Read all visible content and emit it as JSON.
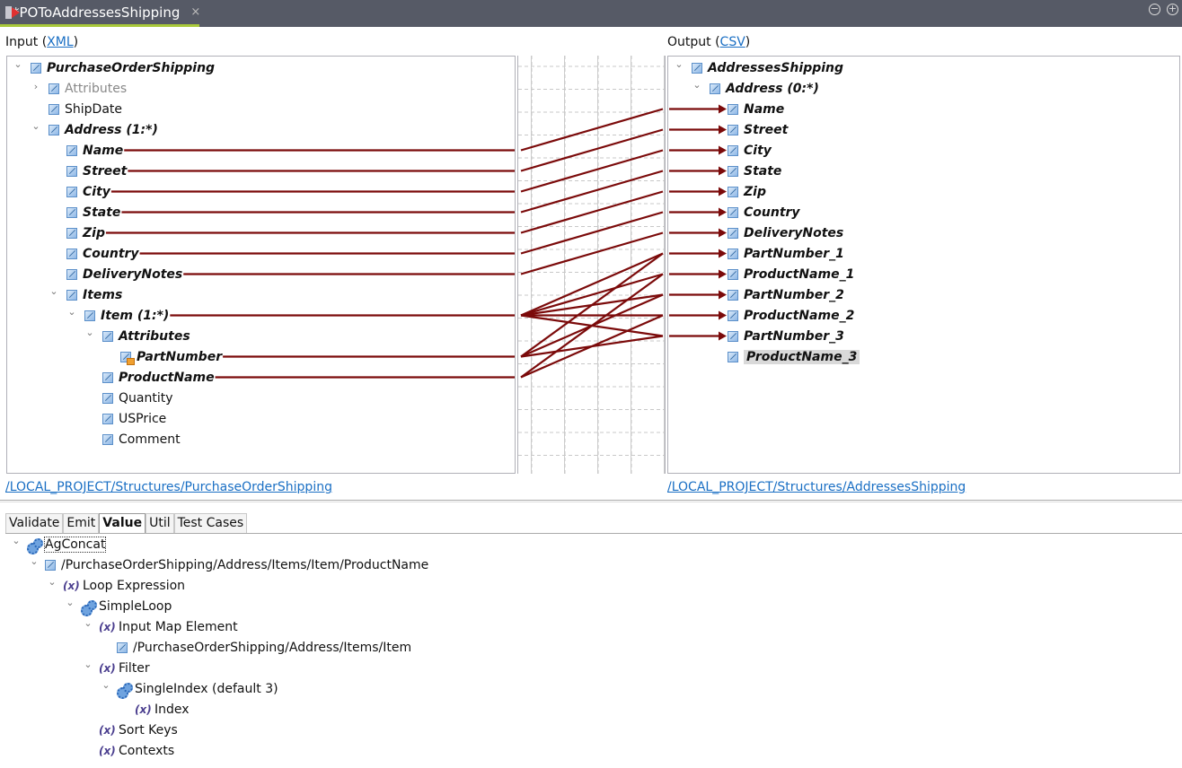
{
  "editor_tab": {
    "title": "*POToAddressesShipping",
    "close": "×"
  },
  "window_buttons": {
    "minimize": "−",
    "maximize": "+"
  },
  "input": {
    "label": "Input (",
    "type_link": "XML",
    "label_end": ")",
    "path": "/LOCAL_PROJECT/Structures/PurchaseOrderShipping"
  },
  "output": {
    "label": "Output (",
    "type_link": "CSV",
    "label_end": ")",
    "path": "/LOCAL_PROJECT/Structures/AddressesShipping"
  },
  "input_tree": [
    {
      "id": "pos",
      "label": "PurchaseOrderShipping",
      "level": 0,
      "chevron": "open",
      "bold": true
    },
    {
      "id": "attrs",
      "label": "Attributes",
      "level": 1,
      "chevron": "closed",
      "muted": true
    },
    {
      "id": "shipdate",
      "label": "ShipDate",
      "level": 1
    },
    {
      "id": "address",
      "label": "Address (1:*)",
      "level": 1,
      "chevron": "open",
      "bold": true
    },
    {
      "id": "name",
      "label": "Name",
      "level": 2,
      "bold": true
    },
    {
      "id": "street",
      "label": "Street",
      "level": 2,
      "bold": true
    },
    {
      "id": "city",
      "label": "City",
      "level": 2,
      "bold": true
    },
    {
      "id": "state",
      "label": "State",
      "level": 2,
      "bold": true
    },
    {
      "id": "zip",
      "label": "Zip",
      "level": 2,
      "bold": true
    },
    {
      "id": "country",
      "label": "Country",
      "level": 2,
      "bold": true
    },
    {
      "id": "notes",
      "label": "DeliveryNotes",
      "level": 2,
      "bold": true
    },
    {
      "id": "items",
      "label": "Items",
      "level": 2,
      "chevron": "open",
      "bold": true
    },
    {
      "id": "item",
      "label": "Item (1:*)",
      "level": 3,
      "chevron": "open",
      "bold": true
    },
    {
      "id": "iattrs",
      "label": "Attributes",
      "level": 4,
      "chevron": "open",
      "bold": true
    },
    {
      "id": "partnumber",
      "label": "PartNumber",
      "level": 5,
      "bold": true,
      "icon": "attribute-icon"
    },
    {
      "id": "productname",
      "label": "ProductName",
      "level": 4,
      "bold": true
    },
    {
      "id": "quantity",
      "label": "Quantity",
      "level": 4
    },
    {
      "id": "usprice",
      "label": "USPrice",
      "level": 4
    },
    {
      "id": "comment",
      "label": "Comment",
      "level": 4
    }
  ],
  "output_tree": [
    {
      "id": "as",
      "label": "AddressesShipping",
      "level": 0,
      "chevron": "open",
      "bold": true
    },
    {
      "id": "oaddr",
      "label": "Address (0:*)",
      "level": 1,
      "chevron": "open",
      "bold": true
    },
    {
      "id": "oname",
      "label": "Name",
      "level": 2,
      "bold": true
    },
    {
      "id": "ostreet",
      "label": "Street",
      "level": 2,
      "bold": true
    },
    {
      "id": "ocity",
      "label": "City",
      "level": 2,
      "bold": true
    },
    {
      "id": "ostate",
      "label": "State",
      "level": 2,
      "bold": true
    },
    {
      "id": "ozip",
      "label": "Zip",
      "level": 2,
      "bold": true
    },
    {
      "id": "ocountry",
      "label": "Country",
      "level": 2,
      "bold": true
    },
    {
      "id": "onotes",
      "label": "DeliveryNotes",
      "level": 2,
      "bold": true
    },
    {
      "id": "pn1",
      "label": "PartNumber_1",
      "level": 2,
      "bold": true
    },
    {
      "id": "pd1",
      "label": "ProductName_1",
      "level": 2,
      "bold": true
    },
    {
      "id": "pn2",
      "label": "PartNumber_2",
      "level": 2,
      "bold": true
    },
    {
      "id": "pd2",
      "label": "ProductName_2",
      "level": 2,
      "bold": true
    },
    {
      "id": "pn3",
      "label": "PartNumber_3",
      "level": 2,
      "bold": true
    },
    {
      "id": "pd3",
      "label": "ProductName_3",
      "level": 2,
      "bold": true,
      "selected": true
    }
  ],
  "mappings": [
    [
      "name",
      "oname"
    ],
    [
      "street",
      "ostreet"
    ],
    [
      "city",
      "ocity"
    ],
    [
      "state",
      "ostate"
    ],
    [
      "zip",
      "ozip"
    ],
    [
      "country",
      "ocountry"
    ],
    [
      "notes",
      "onotes"
    ],
    [
      "item",
      "pn1"
    ],
    [
      "item",
      "pd1"
    ],
    [
      "item",
      "pn2"
    ],
    [
      "item",
      "pd2"
    ],
    [
      "item",
      "pn3"
    ],
    [
      "partnumber",
      "pn1"
    ],
    [
      "partnumber",
      "pn2"
    ],
    [
      "partnumber",
      "pn3"
    ],
    [
      "productname",
      "pd1"
    ],
    [
      "productname",
      "pd2"
    ]
  ],
  "colors": {
    "mapping_line": "#7b0a0a",
    "tab_bar": "#565a66",
    "active_tab_accent": "#a9c93a",
    "link": "#1a6fc4"
  },
  "bottom_tabs": [
    {
      "label": "Validate"
    },
    {
      "label": "Emit"
    },
    {
      "label": "Value",
      "active": true
    },
    {
      "label": "Util"
    },
    {
      "label": "Test Cases"
    }
  ],
  "value_tree": [
    {
      "label": "AgConcat",
      "level": 0,
      "chevron": "open",
      "icon": "gear",
      "focused": true
    },
    {
      "label": "/PurchaseOrderShipping/Address/Items/Item/ProductName",
      "level": 1,
      "chevron": "open",
      "icon": "element"
    },
    {
      "label": "Loop Expression",
      "level": 2,
      "chevron": "open",
      "icon": "variable"
    },
    {
      "label": "SimpleLoop",
      "level": 3,
      "chevron": "open",
      "icon": "gear"
    },
    {
      "label": "Input Map Element",
      "level": 4,
      "chevron": "open",
      "icon": "variable"
    },
    {
      "label": "/PurchaseOrderShipping/Address/Items/Item",
      "level": 5,
      "icon": "element"
    },
    {
      "label": "Filter",
      "level": 4,
      "chevron": "open",
      "icon": "variable"
    },
    {
      "label": "SingleIndex (default 3)",
      "level": 5,
      "chevron": "open",
      "icon": "gear"
    },
    {
      "label": "Index",
      "level": 6,
      "icon": "variable"
    },
    {
      "label": "Sort Keys",
      "level": 4,
      "icon": "variable"
    },
    {
      "label": "Contexts",
      "level": 4,
      "icon": "variable"
    }
  ]
}
